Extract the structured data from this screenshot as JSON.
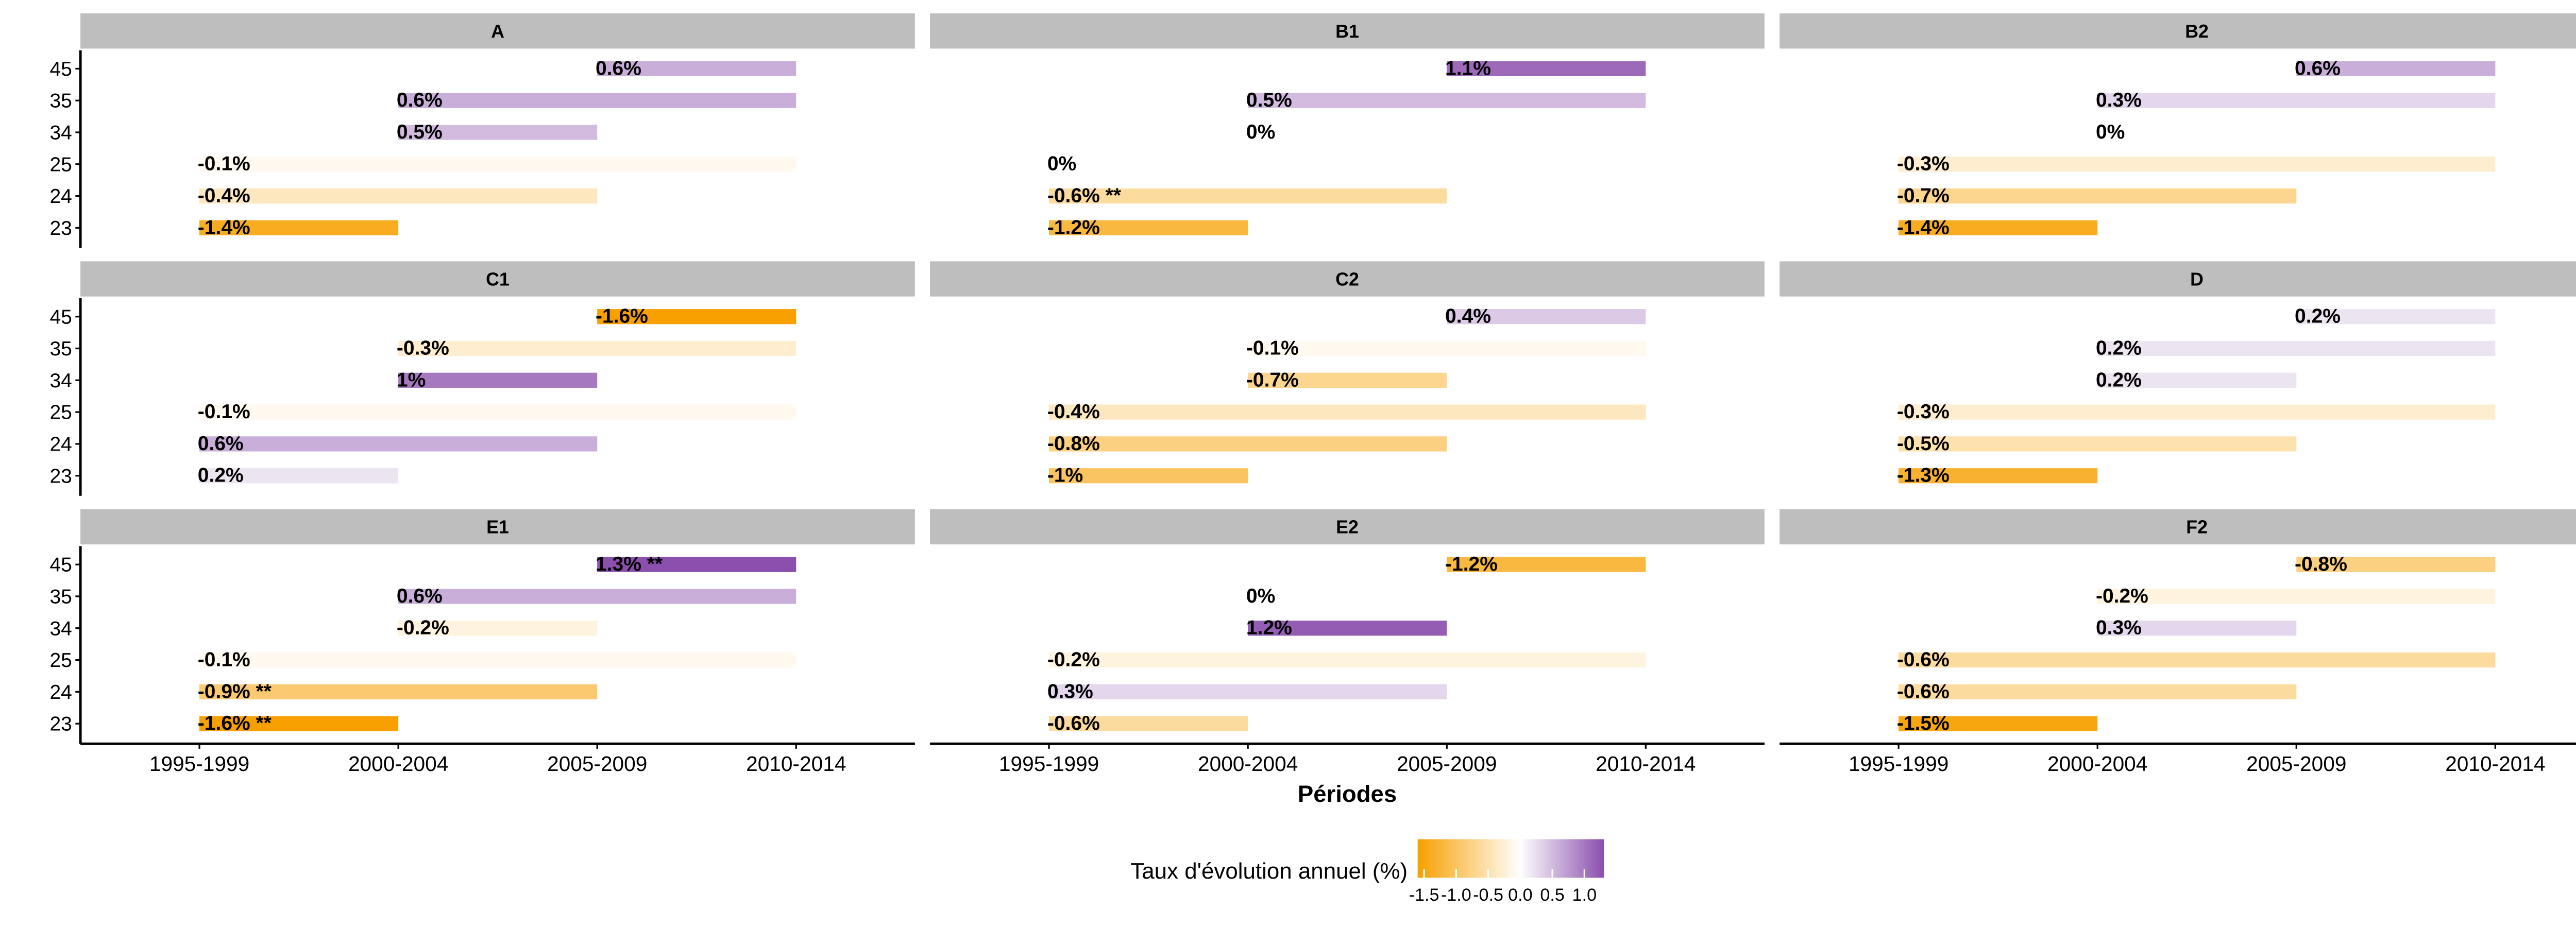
{
  "chart_data": {
    "type": "range-bar",
    "x_label": "Périodes",
    "legend_title": "Taux d'évolution annuel (%)",
    "periods": [
      "1995-1999",
      "2000-2004",
      "2005-2009",
      "2010-2014"
    ],
    "categories": [
      "45",
      "35",
      "34",
      "25",
      "24",
      "23"
    ],
    "start": [
      "2005-2009",
      "2000-2004",
      "2000-2004",
      "1995-1999",
      "1995-1999",
      "1995-1999"
    ],
    "end": [
      "2010-2014",
      "2010-2014",
      "2005-2009",
      "2010-2014",
      "2005-2009",
      "2000-2004"
    ],
    "colorlim": [
      -1.6,
      1.3
    ],
    "colors": [
      "#f7a000",
      "#ffffff",
      "#8b4fad"
    ],
    "color_ticks": [
      {
        "value": -1.5,
        "label": "-1.5"
      },
      {
        "value": -1.0,
        "label": "-1.0"
      },
      {
        "value": -0.5,
        "label": "-0.5"
      },
      {
        "value": 0.0,
        "label": "0.0"
      },
      {
        "value": 0.5,
        "label": "0.5"
      },
      {
        "value": 1.0,
        "label": "1.0"
      }
    ],
    "panels": [
      {
        "title": "A",
        "values": [
          0.6,
          0.6,
          0.5,
          -0.1,
          -0.4,
          -1.4
        ],
        "value_labels": [
          "0.6%",
          "0.6%",
          "0.5%",
          "-0.1%",
          "-0.4%",
          "-1.4%"
        ]
      },
      {
        "title": "B1",
        "values": [
          1.1,
          0.5,
          0,
          0,
          -0.6,
          -1.2
        ],
        "value_labels": [
          "1.1%",
          "0.5%",
          "0%",
          "0%",
          "-0.6% **",
          "-1.2%"
        ]
      },
      {
        "title": "B2",
        "values": [
          0.6,
          0.3,
          0,
          -0.3,
          -0.7,
          -1.4
        ],
        "value_labels": [
          "0.6%",
          "0.3%",
          "0%",
          "-0.3%",
          "-0.7%",
          "-1.4%"
        ]
      },
      {
        "title": "C1",
        "values": [
          -1.6,
          -0.3,
          1,
          -0.1,
          0.6,
          0.2
        ],
        "value_labels": [
          "-1.6%",
          "-0.3%",
          "1%",
          "-0.1%",
          "0.6%",
          "0.2%"
        ]
      },
      {
        "title": "C2",
        "values": [
          0.4,
          -0.1,
          -0.7,
          -0.4,
          -0.8,
          -1
        ],
        "value_labels": [
          "0.4%",
          "-0.1%",
          "-0.7%",
          "-0.4%",
          "-0.8%",
          "-1%"
        ]
      },
      {
        "title": "D",
        "values": [
          0.2,
          0.2,
          0.2,
          -0.3,
          -0.5,
          -1.3
        ],
        "value_labels": [
          "0.2%",
          "0.2%",
          "0.2%",
          "-0.3%",
          "-0.5%",
          "-1.3%"
        ]
      },
      {
        "title": "E1",
        "values": [
          1.3,
          0.6,
          -0.2,
          -0.1,
          -0.9,
          -1.6
        ],
        "value_labels": [
          "1.3% **",
          "0.6%",
          "-0.2%",
          "-0.1%",
          "-0.9% **",
          "-1.6% **"
        ]
      },
      {
        "title": "E2",
        "values": [
          -1.2,
          0,
          1.2,
          -0.2,
          0.3,
          -0.6
        ],
        "value_labels": [
          "-1.2%",
          "0%",
          "1.2%",
          "-0.2%",
          "0.3%",
          "-0.6%"
        ]
      },
      {
        "title": "F2",
        "values": [
          -0.8,
          -0.2,
          0.3,
          -0.6,
          -0.6,
          -1.5
        ],
        "value_labels": [
          "-0.8%",
          "-0.2%",
          "0.3%",
          "-0.6%",
          "-0.6%",
          "-1.5%"
        ]
      }
    ]
  }
}
